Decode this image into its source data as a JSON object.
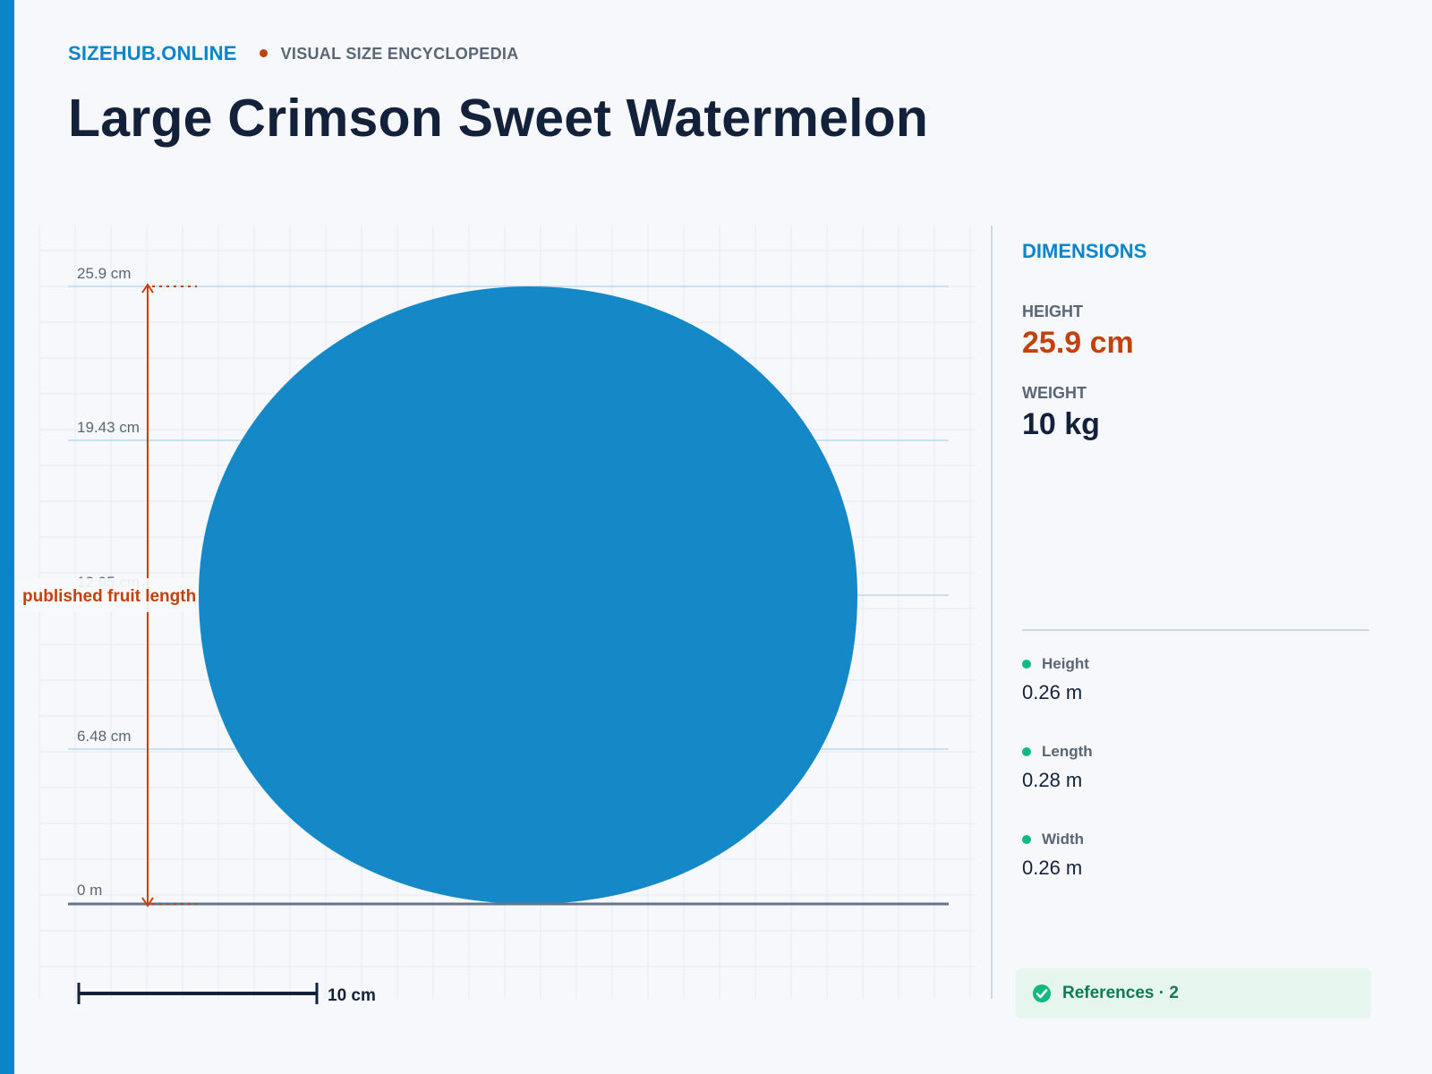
{
  "site": {
    "brand": "SIZEHUB.ONLINE",
    "tagline": "VISUAL SIZE ENCYCLOPEDIA"
  },
  "page": {
    "title": "Large Crimson Sweet Watermelon"
  },
  "diagram": {
    "y_axis_labels": [
      "25.9 cm",
      "19.43 cm",
      "12.95 cm",
      "6.48 cm",
      "0 m"
    ],
    "dimension_label": "published fruit length",
    "scale_bar_label": "10 cm",
    "colors": {
      "fruit": "#1589c7",
      "measure": "#c2410c",
      "grid": "#e7ecf1"
    }
  },
  "panel": {
    "title": "DIMENSIONS",
    "height_label": "HEIGHT",
    "height_value": "25.9 cm",
    "weight_label": "WEIGHT",
    "weight_value": "10 kg",
    "specs": [
      {
        "name": "Height",
        "value": "0.26 m"
      },
      {
        "name": "Length",
        "value": "0.28 m"
      },
      {
        "name": "Width",
        "value": "0.26 m"
      }
    ],
    "references_label": "References · 2"
  }
}
